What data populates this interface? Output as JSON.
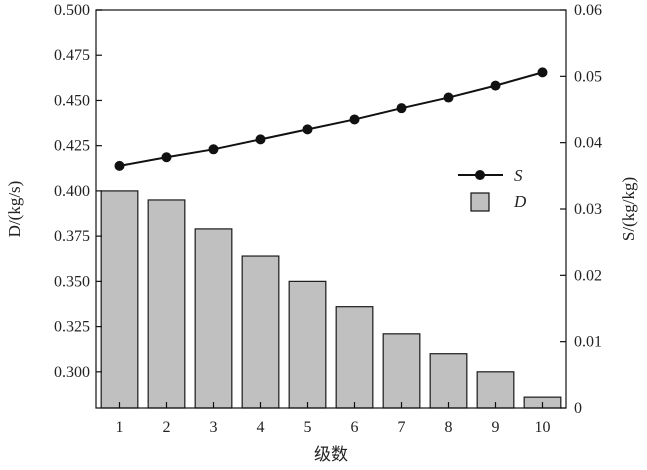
{
  "chart_data": {
    "type": "bar",
    "categories": [
      "1",
      "2",
      "3",
      "4",
      "5",
      "6",
      "7",
      "8",
      "9",
      "10"
    ],
    "series": [
      {
        "name": "D",
        "axis": "left",
        "render": "bar",
        "values": [
          0.4,
          0.395,
          0.379,
          0.364,
          0.35,
          0.336,
          0.321,
          0.31,
          0.3,
          0.286
        ]
      },
      {
        "name": "S",
        "axis": "right",
        "render": "line-with-markers",
        "values": [
          0.0365,
          0.0378,
          0.039,
          0.0405,
          0.042,
          0.0435,
          0.0452,
          0.0468,
          0.0486,
          0.0506
        ]
      }
    ],
    "xlabel": "级数",
    "ylabel": "D/(kg/s)",
    "y2label": "S/(kg/kg)",
    "ylim": [
      0.28,
      0.5
    ],
    "y2lim": [
      0,
      0.06
    ],
    "yticks": [
      "0.300",
      "0.325",
      "0.350",
      "0.375",
      "0.400",
      "0.425",
      "0.450",
      "0.475",
      "0.500"
    ],
    "y2ticks": [
      "0",
      "0.01",
      "0.02",
      "0.03",
      "0.04",
      "0.05",
      "0.06"
    ],
    "legend": {
      "position": "right-middle",
      "entries": [
        "S",
        "D"
      ]
    },
    "grid": false,
    "colors": {
      "bar_fill": "#c0c0c0",
      "bar_stroke": "#1a1a1a",
      "line": "#111111",
      "axis": "#111111"
    }
  }
}
